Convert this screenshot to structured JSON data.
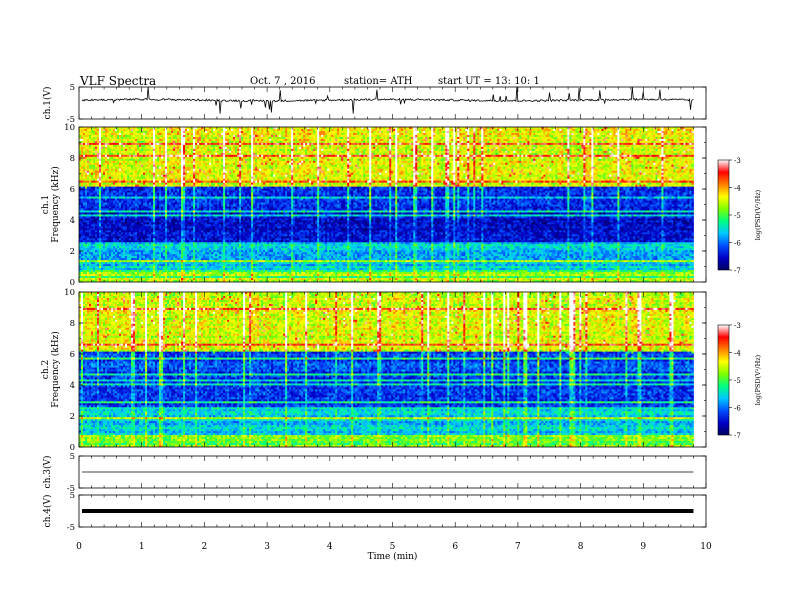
{
  "header": {
    "title": "VLF  Spectra",
    "date": "Oct. 7  , 2016",
    "station": "station= ATH",
    "start": "start  UT  =   13: 10: 1"
  },
  "chart_data": {
    "type": "heatmap",
    "x_axis": {
      "label": "Time  (min)",
      "range": [
        0,
        10
      ],
      "ticks": [
        "0",
        "1",
        "2",
        "3",
        "4",
        "5",
        "6",
        "7",
        "8",
        "9",
        "10"
      ],
      "data_end_min": 9.8
    },
    "panels": [
      {
        "id": "ch1-waveform",
        "type": "line",
        "ylabel": "ch.1(V)",
        "ylim": [
          -5,
          5
        ],
        "yticks": [
          "5",
          "-5"
        ],
        "baseline_v": 0.9
      },
      {
        "id": "ch1-spectrogram",
        "type": "heatmap",
        "ylabel_channel": "ch.1",
        "ylabel": "Frequency  (kHz)",
        "ylim": [
          0,
          10
        ],
        "yticks": [
          "0",
          "2",
          "4",
          "6",
          "8",
          "10"
        ],
        "description_bands_khz": {
          "quiet_band": [
            2.5,
            6
          ],
          "active_band": [
            6,
            10
          ]
        }
      },
      {
        "id": "ch2-spectrogram",
        "type": "heatmap",
        "ylabel_channel": "ch.2",
        "ylabel": "Frequency  (kHz)",
        "ylim": [
          0,
          10
        ],
        "yticks": [
          "0",
          "2",
          "4",
          "6",
          "8",
          "10"
        ]
      },
      {
        "id": "ch3-waveform",
        "type": "line",
        "ylabel": "ch.3(V)",
        "ylim": [
          -5,
          5
        ],
        "yticks": [
          "5",
          "-5"
        ],
        "baseline_v": 0
      },
      {
        "id": "ch4-waveform",
        "type": "line",
        "ylabel": "ch.4(V)",
        "ylim": [
          -5,
          5
        ],
        "yticks": [
          "5",
          "-5"
        ],
        "baseline_v": 0
      }
    ],
    "colorbar": {
      "label": "log(PSD(V²/Hz)",
      "ticks": [
        "-3",
        "-4",
        "-5",
        "-6",
        "-7"
      ],
      "range": [
        -7,
        -3
      ],
      "colors": [
        "#000060",
        "#0000c8",
        "#0050ff",
        "#00c8ff",
        "#00ff80",
        "#80ff00",
        "#ffff00",
        "#ff8000",
        "#ff0000",
        "#ffffff"
      ]
    }
  }
}
